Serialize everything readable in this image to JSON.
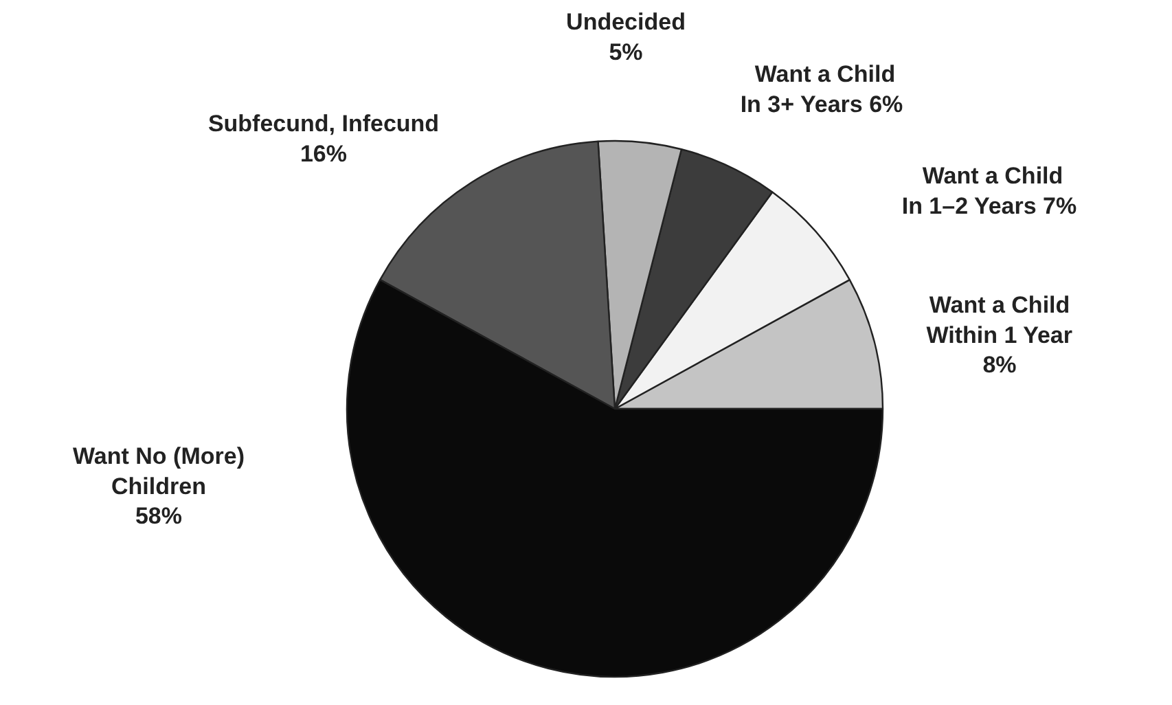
{
  "chart_data": {
    "type": "pie",
    "categories": [
      "Want a Child\nWithin 1 Year",
      "Want a Child\nIn 1–2 Years",
      "Want a Child\nIn 3+ Years",
      "Undecided",
      "Subfecund, Infecund",
      "Want No (More)\nChildren"
    ],
    "values": [
      8,
      7,
      6,
      5,
      16,
      58
    ],
    "value_labels": [
      "8%",
      "7%",
      "6%",
      "5%",
      "16%",
      "58%"
    ],
    "colors": [
      "#c4c4c4",
      "#f2f2f2",
      "#3c3c3c",
      "#b4b4b4",
      "#555555",
      "#0a0a0a"
    ]
  }
}
